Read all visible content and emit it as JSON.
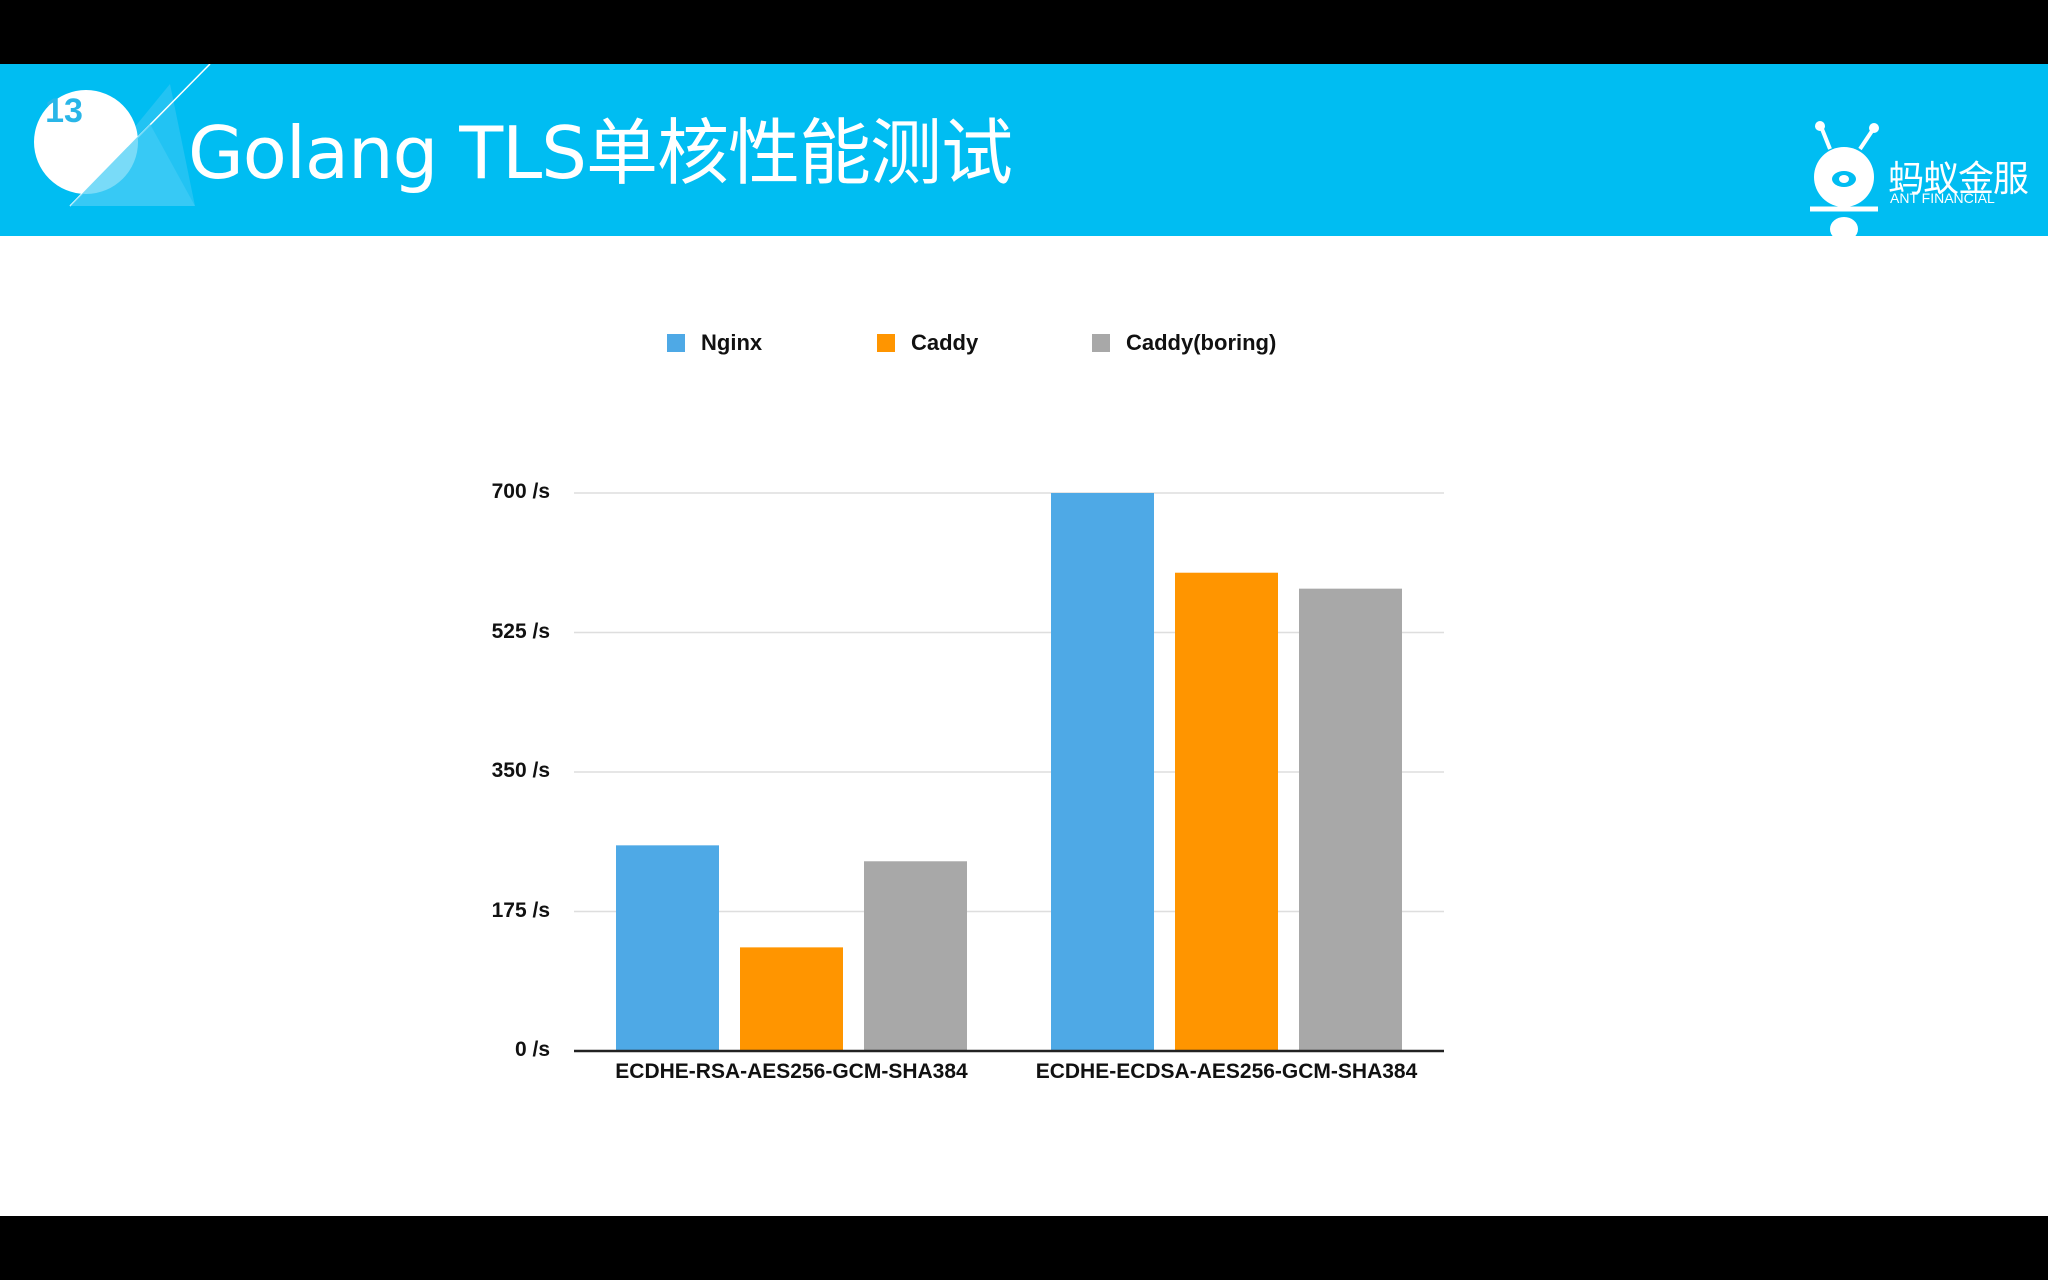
{
  "slide": {
    "page_number": "13",
    "title": "Golang TLS单核性能测试",
    "logo_cn": "蚂蚁金服",
    "logo_en": "ANT FINANCIAL"
  },
  "colors": {
    "header": "#00bdf2",
    "accent": "#29b6e8",
    "nginx": "#4ea9e6",
    "caddy": "#ff9500",
    "caddy_boring": "#a8a8a8",
    "grid": "#dedede",
    "axis": "#222222"
  },
  "chart_data": {
    "type": "bar",
    "categories": [
      "ECDHE-RSA-AES256-GCM-SHA384",
      "ECDHE-ECDSA-AES256-GCM-SHA384"
    ],
    "series": [
      {
        "name": "Nginx",
        "values": [
          258,
          700
        ]
      },
      {
        "name": "Caddy",
        "values": [
          130,
          600
        ]
      },
      {
        "name": "Caddy(boring)",
        "values": [
          238,
          580
        ]
      }
    ],
    "ylim": [
      0,
      700
    ],
    "yticks": [
      0,
      175,
      350,
      525,
      700
    ],
    "ytick_labels": [
      "0 /s",
      "175 /s",
      "350 /s",
      "525 /s",
      "700 /s"
    ],
    "grid": true,
    "legend_position": "top"
  }
}
